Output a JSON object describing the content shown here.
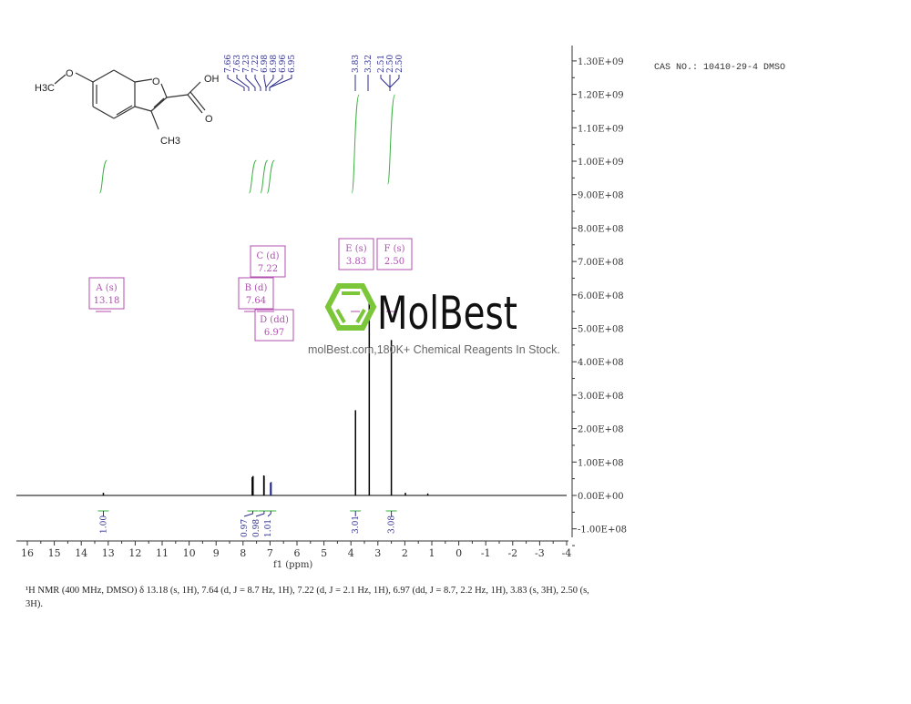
{
  "header": {
    "cas_label": "CAS NO.: 10410-29-4 DMSO"
  },
  "molecule": {
    "labels": [
      "H3C",
      "O",
      "O",
      "OH",
      "O",
      "CH3"
    ]
  },
  "watermark": {
    "brand": "MolBest",
    "tagline": "molBest.com,180K+ Chemical Reagents In Stock."
  },
  "description": {
    "text": "¹H NMR (400 MHz, DMSO) δ 13.18 (s, 1H), 7.64 (d, J = 8.7 Hz, 1H), 7.22 (d, J = 2.1 Hz, 1H), 6.97 (dd, J = 8.7, 2.2 Hz, 1H), 3.83 (s, 3H), 2.50 (s, 3H)."
  },
  "colors": {
    "spectrum": "#000000",
    "peak_labels": "#2b2b8c",
    "integrals": "#3cb043",
    "multiplets": "#b04fb0",
    "logo_green": "#7cc63a"
  },
  "chart_data": {
    "type": "line",
    "xlabel": "f1 (ppm)",
    "xlim": [
      16,
      -4
    ],
    "ylim": [
      -100000000,
      1300000000
    ],
    "x_ticks": [
      "16",
      "15",
      "14",
      "13",
      "12",
      "11",
      "10",
      "9",
      "8",
      "7",
      "6",
      "5",
      "4",
      "3",
      "2",
      "1",
      "0",
      "-1",
      "-2",
      "-3",
      "-4"
    ],
    "y_ticks": [
      "-1.00E+08",
      "0.00E+00",
      "1.00E+08",
      "2.00E+08",
      "3.00E+08",
      "4.00E+08",
      "5.00E+08",
      "6.00E+08",
      "7.00E+08",
      "8.00E+08",
      "9.00E+08",
      "1.00E+09",
      "1.10E+09",
      "1.20E+09",
      "1.30E+09"
    ],
    "y_tick_values": [
      -100000000.0,
      0,
      100000000.0,
      200000000.0,
      300000000.0,
      400000000.0,
      500000000.0,
      600000000.0,
      700000000.0,
      800000000.0,
      900000000.0,
      1000000000.0,
      1100000000.0,
      1200000000.0,
      1300000000.0
    ],
    "peaks": [
      {
        "ppm": 13.18,
        "intensity": 8000000
      },
      {
        "ppm": 7.66,
        "intensity": 55000000
      },
      {
        "ppm": 7.63,
        "intensity": 58000000
      },
      {
        "ppm": 7.23,
        "intensity": 60000000
      },
      {
        "ppm": 7.22,
        "intensity": 58000000
      },
      {
        "ppm": 6.98,
        "intensity": 38000000
      },
      {
        "ppm": 6.96,
        "intensity": 40000000
      },
      {
        "ppm": 3.83,
        "intensity": 255000000
      },
      {
        "ppm": 3.32,
        "intensity": 600000000
      },
      {
        "ppm": 2.5,
        "intensity": 465000000
      },
      {
        "ppm": 1.98,
        "intensity": 8000000
      },
      {
        "ppm": 1.15,
        "intensity": 6000000
      }
    ],
    "peak_labels_group1": [
      "7.66",
      "7.63",
      "7.23",
      "7.22",
      "6.98",
      "6.98",
      "6.96",
      "6.95"
    ],
    "peak_labels_group2": [
      "3.83",
      "3.32"
    ],
    "peak_labels_group3": [
      "2.51",
      "2.50",
      "2.50"
    ],
    "multiplets": [
      {
        "name": "A (s)",
        "shift": "13.18"
      },
      {
        "name": "B (d)",
        "shift": "7.64"
      },
      {
        "name": "C (d)",
        "shift": "7.22"
      },
      {
        "name": "D (dd)",
        "shift": "6.97"
      },
      {
        "name": "E (s)",
        "shift": "3.83"
      },
      {
        "name": "F (s)",
        "shift": "2.50"
      }
    ],
    "integrals": [
      {
        "ppm": 13.18,
        "value": "1.00"
      },
      {
        "ppm": 7.64,
        "value": "0.97"
      },
      {
        "ppm": 7.22,
        "value": "0.98"
      },
      {
        "ppm": 6.97,
        "value": "1.01"
      },
      {
        "ppm": 3.83,
        "value": "3.01"
      },
      {
        "ppm": 2.5,
        "value": "3.08"
      }
    ]
  }
}
